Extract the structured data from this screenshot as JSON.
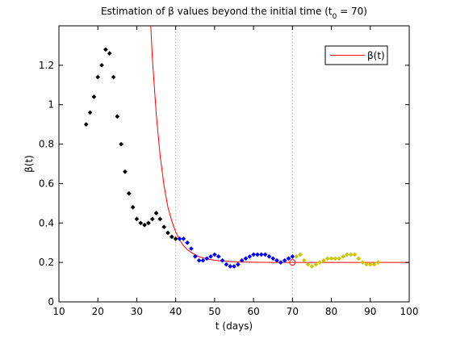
{
  "chart_data": {
    "type": "scatter",
    "title": "Estimation of β values beyond the initial time (t",
    "title_sub": "0",
    "title_tail": " = 70)",
    "xlabel": "t (days)",
    "ylabel": "β(t)",
    "xlim": [
      10,
      100
    ],
    "ylim": [
      0,
      1.4
    ],
    "xticks": [
      10,
      20,
      30,
      40,
      50,
      60,
      70,
      80,
      90,
      100
    ],
    "yticks": [
      0,
      0.2,
      0.4,
      0.6,
      0.8,
      1,
      1.2
    ],
    "ytick_labels": [
      "0",
      "0.2",
      "0.4",
      "0.6",
      "0.8",
      "1",
      "1.2"
    ],
    "vlines": [
      40,
      70
    ],
    "legend": {
      "position": "top-right",
      "entries": [
        "β(t)"
      ]
    },
    "grid": false,
    "series": [
      {
        "name": "",
        "marker": "diamond",
        "color": "#000000",
        "x": [
          17,
          18,
          19,
          20,
          21,
          22,
          23,
          24,
          25,
          26,
          27,
          28,
          29,
          30,
          31,
          32,
          33,
          34,
          35,
          36,
          37,
          38,
          39,
          40
        ],
        "y": [
          0.9,
          0.96,
          1.04,
          1.14,
          1.2,
          1.28,
          1.26,
          1.14,
          0.94,
          0.8,
          0.66,
          0.55,
          0.48,
          0.42,
          0.4,
          0.39,
          0.4,
          0.42,
          0.45,
          0.42,
          0.38,
          0.35,
          0.33,
          0.32
        ]
      },
      {
        "name": "",
        "marker": "diamond",
        "color": "#0000ff",
        "x": [
          41,
          42,
          43,
          44,
          45,
          46,
          47,
          48,
          49,
          50,
          51,
          52,
          53,
          54,
          55,
          56,
          57,
          58,
          59,
          60,
          61,
          62,
          63,
          64,
          65,
          66,
          67,
          68,
          69,
          70
        ],
        "y": [
          0.32,
          0.32,
          0.3,
          0.27,
          0.23,
          0.21,
          0.21,
          0.22,
          0.23,
          0.24,
          0.23,
          0.21,
          0.19,
          0.18,
          0.18,
          0.19,
          0.21,
          0.22,
          0.23,
          0.24,
          0.24,
          0.24,
          0.24,
          0.23,
          0.22,
          0.21,
          0.2,
          0.21,
          0.22,
          0.23
        ]
      },
      {
        "name": "",
        "marker": "diamond",
        "color": "#c8c800",
        "x": [
          71,
          72,
          73,
          74,
          75,
          76,
          77,
          78,
          79,
          80,
          81,
          82,
          83,
          84,
          85,
          86,
          87,
          88,
          89,
          90,
          91,
          92
        ],
        "y": [
          0.23,
          0.24,
          0.21,
          0.19,
          0.18,
          0.19,
          0.2,
          0.21,
          0.22,
          0.22,
          0.22,
          0.22,
          0.23,
          0.24,
          0.24,
          0.24,
          0.22,
          0.2,
          0.19,
          0.19,
          0.19,
          0.2
        ]
      }
    ],
    "curve": {
      "name": "β(t)",
      "color": "#ff0000",
      "x": [
        33.6,
        34,
        35,
        36,
        37,
        38,
        39,
        40,
        41,
        42,
        43,
        44,
        46,
        48,
        50,
        52,
        55,
        60,
        65,
        70,
        75,
        80,
        90,
        100
      ],
      "y": [
        1.4,
        1.24,
        0.95,
        0.74,
        0.59,
        0.48,
        0.41,
        0.355,
        0.315,
        0.285,
        0.265,
        0.25,
        0.229,
        0.218,
        0.211,
        0.207,
        0.203,
        0.201,
        0.2,
        0.2,
        0.2,
        0.2,
        0.2,
        0.2
      ]
    },
    "highlight_point": {
      "x": 70,
      "y": 0.2,
      "color": "#ff0000"
    }
  }
}
